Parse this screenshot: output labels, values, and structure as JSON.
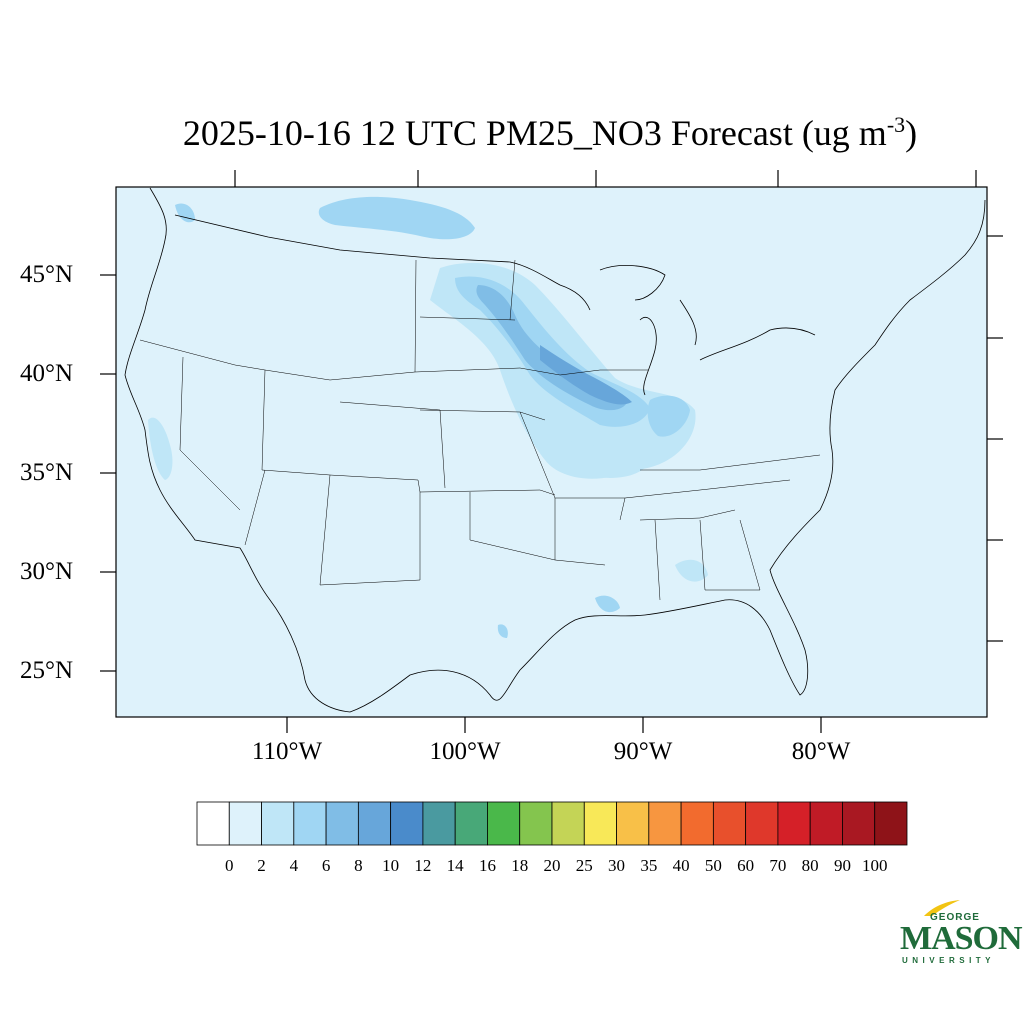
{
  "title": {
    "main": "2025-10-16 12 UTC PM25_NO3 Forecast (ug m",
    "superscript": "-3",
    "close": ")"
  },
  "map": {
    "type": "filled-contour-map",
    "region": "Contiguous United States",
    "variable": "PM25_NO3",
    "units": "ug m-3",
    "background_color": "#def2fb",
    "lat_ticks": [
      "45°N",
      "40°N",
      "35°N",
      "30°N",
      "25°N"
    ],
    "lon_ticks": [
      "110°W",
      "100°W",
      "90°W",
      "80°W"
    ]
  },
  "colorbar": {
    "labels": [
      "0",
      "2",
      "4",
      "6",
      "8",
      "10",
      "12",
      "14",
      "16",
      "18",
      "20",
      "25",
      "30",
      "35",
      "40",
      "50",
      "60",
      "70",
      "80",
      "90",
      "100"
    ],
    "colors": [
      "#ffffff",
      "#def2fb",
      "#bfe6f7",
      "#a0d6f3",
      "#80bde6",
      "#67a6da",
      "#4a8bcb",
      "#4a9aa0",
      "#48a878",
      "#4ab84a",
      "#84c54e",
      "#c4d456",
      "#f8e858",
      "#f8c048",
      "#f79640",
      "#f26b2e",
      "#e8502c",
      "#df382b",
      "#d52028",
      "#c01b26",
      "#a91822",
      "#8e1318"
    ]
  },
  "logo": {
    "line1": "GEORGE",
    "line2": "MASON",
    "line3": "UNIVERSITY"
  }
}
